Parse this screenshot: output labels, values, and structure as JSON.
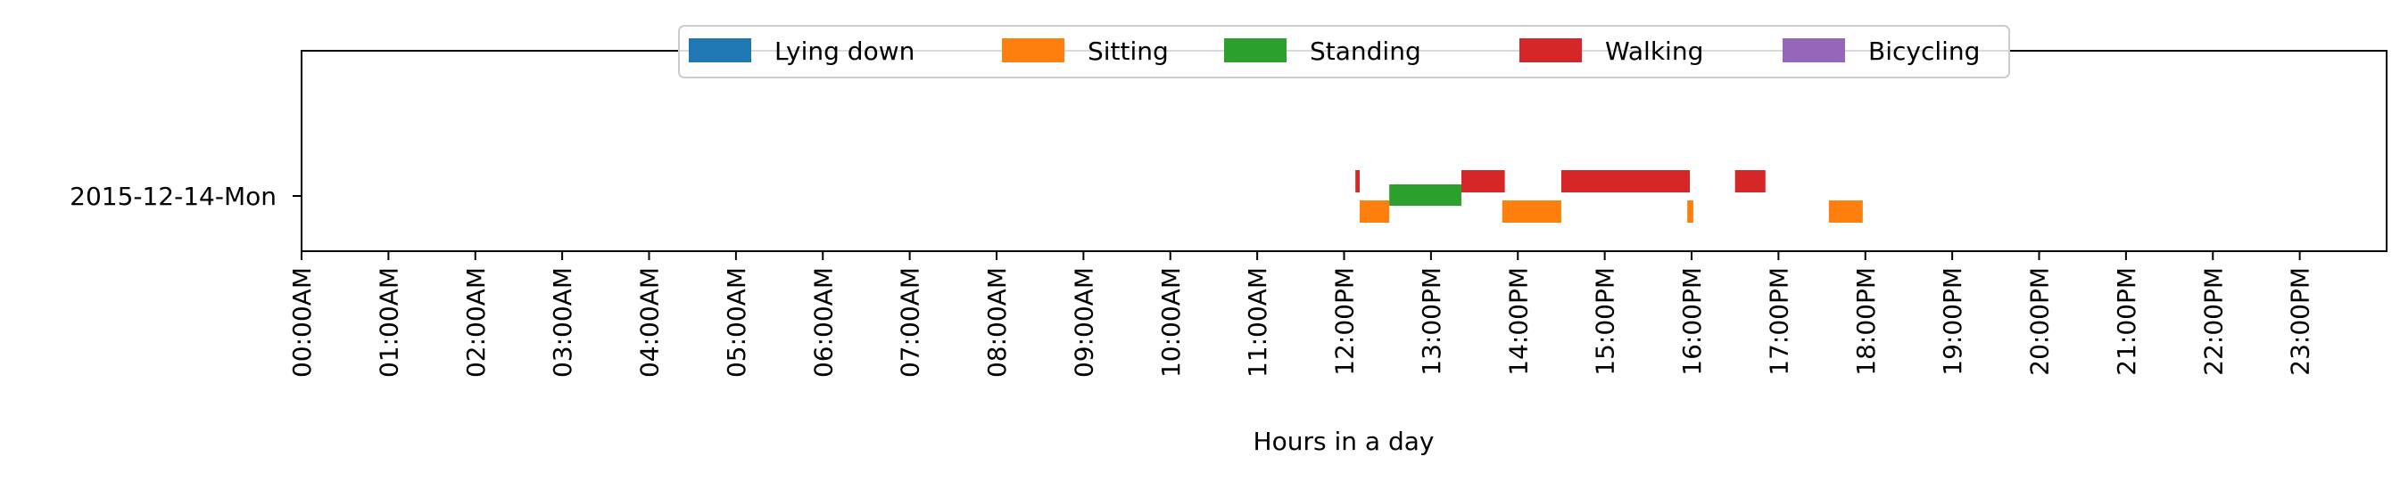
{
  "chart_data": {
    "type": "timeline",
    "xlabel": "Hours in a day",
    "xlim": [
      0,
      24
    ],
    "x_tick_values": [
      0,
      1,
      2,
      3,
      4,
      5,
      6,
      7,
      8,
      9,
      10,
      11,
      12,
      13,
      14,
      15,
      16,
      17,
      18,
      19,
      20,
      21,
      22,
      23
    ],
    "x_tick_labels": [
      "00:00AM",
      "01:00AM",
      "02:00AM",
      "03:00AM",
      "04:00AM",
      "05:00AM",
      "06:00AM",
      "07:00AM",
      "08:00AM",
      "09:00AM",
      "10:00AM",
      "11:00AM",
      "12:00PM",
      "13:00PM",
      "14:00PM",
      "15:00PM",
      "16:00PM",
      "17:00PM",
      "18:00PM",
      "19:00PM",
      "20:00PM",
      "21:00PM",
      "22:00PM",
      "23:00PM"
    ],
    "categories": [
      "2015-12-14-Mon"
    ],
    "legend_position": "top-center",
    "series": [
      {
        "name": "Lying down",
        "color": "#1f77b4",
        "lane": "top",
        "segments": []
      },
      {
        "name": "Sitting",
        "color": "#ff7f0e",
        "lane": "bottom",
        "segments": [
          [
            12.18,
            12.52
          ],
          [
            13.82,
            14.5
          ],
          [
            15.95,
            16.02
          ],
          [
            17.58,
            17.97
          ]
        ]
      },
      {
        "name": "Standing",
        "color": "#2ca02c",
        "lane": "middle",
        "segments": [
          [
            12.52,
            13.35
          ]
        ]
      },
      {
        "name": "Walking",
        "color": "#d62728",
        "lane": "top",
        "segments": [
          [
            12.13,
            12.18
          ],
          [
            13.35,
            13.85
          ],
          [
            14.5,
            15.98
          ],
          [
            16.5,
            16.85
          ]
        ]
      },
      {
        "name": "Bicycling",
        "color": "#9467bd",
        "lane": "top",
        "segments": []
      }
    ]
  }
}
